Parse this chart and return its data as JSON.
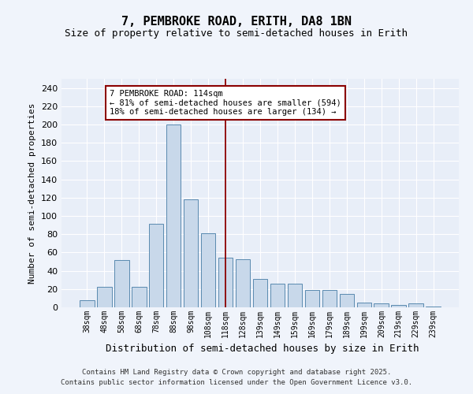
{
  "title": "7, PEMBROKE ROAD, ERITH, DA8 1BN",
  "subtitle": "Size of property relative to semi-detached houses in Erith",
  "xlabel": "Distribution of semi-detached houses by size in Erith",
  "ylabel": "Number of semi-detached properties",
  "categories": [
    "38sqm",
    "48sqm",
    "58sqm",
    "68sqm",
    "78sqm",
    "88sqm",
    "98sqm",
    "108sqm",
    "118sqm",
    "128sqm",
    "139sqm",
    "149sqm",
    "159sqm",
    "169sqm",
    "179sqm",
    "189sqm",
    "199sqm",
    "209sqm",
    "219sqm",
    "229sqm",
    "239sqm"
  ],
  "values": [
    8,
    22,
    52,
    22,
    91,
    200,
    118,
    81,
    54,
    53,
    31,
    26,
    26,
    19,
    19,
    15,
    5,
    4,
    3,
    4,
    1
  ],
  "bar_color": "#c8d8ea",
  "bar_edge_color": "#5a8ab0",
  "vline_color": "#8b0000",
  "annotation_title": "7 PEMBROKE ROAD: 114sqm",
  "annotation_line1": "← 81% of semi-detached houses are smaller (594)",
  "annotation_line2": "18% of semi-detached houses are larger (134) →",
  "annotation_box_color": "#ffffff",
  "annotation_box_edge": "#8b0000",
  "ylim": [
    0,
    250
  ],
  "yticks": [
    0,
    20,
    40,
    60,
    80,
    100,
    120,
    140,
    160,
    180,
    200,
    220,
    240
  ],
  "fig_bg_color": "#f0f4fb",
  "axes_bg_color": "#e8eef8",
  "footer_line1": "Contains HM Land Registry data © Crown copyright and database right 2025.",
  "footer_line2": "Contains public sector information licensed under the Open Government Licence v3.0."
}
